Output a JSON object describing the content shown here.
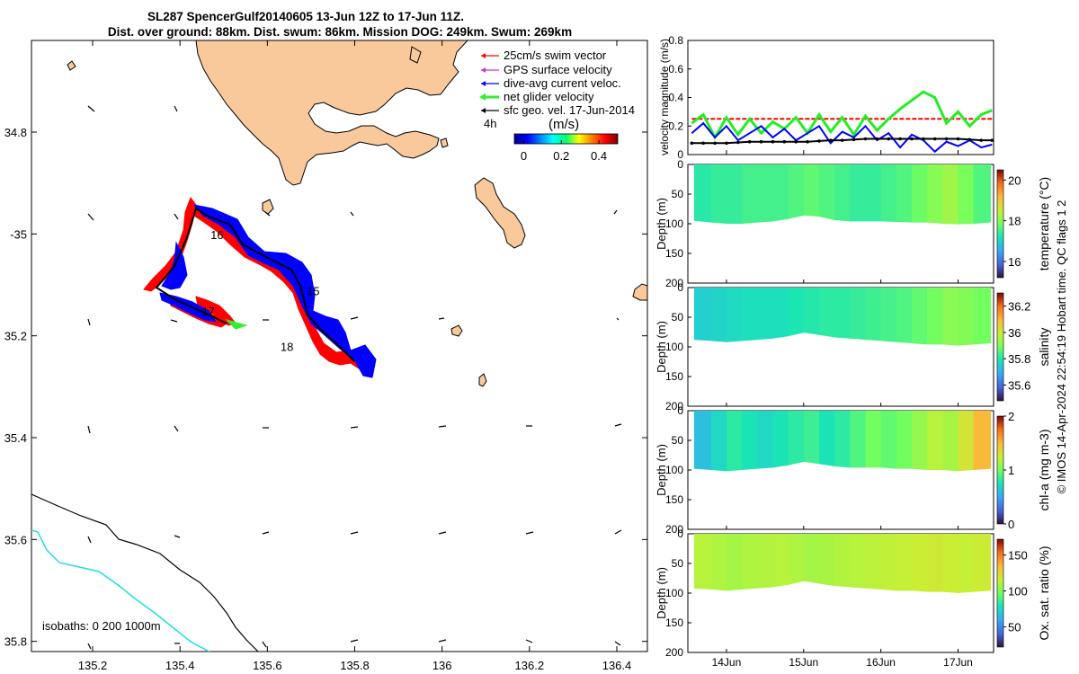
{
  "title": {
    "line1": "SL287 SpencerGulf20140605 13-Jun 12Z to 17-Jun 11Z.",
    "line2": "Dist. over ground: 88km. Dist. swum: 86km. Mission DOG: 249km. Swum: 269km"
  },
  "map": {
    "lon_ticks": [
      "135.2",
      "135.4",
      "135.6",
      "135.8",
      "136",
      "136.2",
      "136.4"
    ],
    "lon_values": [
      135.2,
      135.4,
      135.6,
      135.8,
      136.0,
      136.2,
      136.4
    ],
    "lat_ticks": [
      "34.8",
      "-35",
      "35.2",
      "35.4",
      "35.6",
      "35.8"
    ],
    "lat_values": [
      -34.8,
      -35.0,
      -35.2,
      -35.4,
      -35.6,
      -35.8
    ],
    "xlim": [
      135.06,
      136.47
    ],
    "ylim": [
      -35.82,
      -34.62
    ],
    "legend": [
      {
        "label": "25cm/s swim vector",
        "color": "#ff0000"
      },
      {
        "label": "GPS surface velocity",
        "color": "#cc33cc"
      },
      {
        "label": "dive-avg current veloc.",
        "color": "#0000ff"
      },
      {
        "label": "net glider velocity",
        "color": "#00dd00"
      },
      {
        "label": "sfc geo. vel. 17-Jun-2014",
        "color": "#000000"
      }
    ],
    "colorbar": {
      "unit_label": "(m/s)",
      "corner_label": "4h",
      "ticks": [
        "0",
        "0.2",
        "0.4"
      ],
      "tick_values": [
        0,
        0.2,
        0.4
      ],
      "range": [
        -0.05,
        0.5
      ]
    },
    "day_labels": [
      {
        "text": "16",
        "lon": 135.47,
        "lat": -35.01
      },
      {
        "text": "15",
        "lon": 135.69,
        "lat": -35.12
      },
      {
        "text": "17",
        "lon": 135.45,
        "lat": -35.16
      },
      {
        "text": "18",
        "lon": 135.63,
        "lat": -35.23
      }
    ],
    "track": [
      [
        135.51,
        -35.21
      ],
      [
        135.46,
        -35.19
      ],
      [
        135.38,
        -35.16
      ],
      [
        135.34,
        -35.145
      ],
      [
        135.38,
        -35.09
      ],
      [
        135.43,
        -34.99
      ],
      [
        135.48,
        -35.01
      ],
      [
        135.53,
        -35.06
      ],
      [
        135.57,
        -35.08
      ],
      [
        135.64,
        -35.12
      ],
      [
        135.66,
        -35.17
      ],
      [
        135.7,
        -35.21
      ],
      [
        135.77,
        -35.25
      ],
      [
        135.82,
        -35.27
      ]
    ],
    "isobath_label": "isobaths: 0   200  1000m"
  },
  "velocity_panel": {
    "ylabel": "velocity magnitude (m/s)",
    "yticks": [
      "0",
      "0.2",
      "0.4",
      "0.6",
      "0.8"
    ],
    "ytick_values": [
      0,
      0.2,
      0.4,
      0.6,
      0.8
    ],
    "ylim": [
      0,
      0.8
    ]
  },
  "depth_panels": [
    {
      "variable": "temperature (°C)",
      "ylabel": "Depth (m)",
      "yticks": [
        "0",
        "50",
        "100",
        "150",
        "200"
      ],
      "cbar_ticks": [
        "16",
        "18",
        "20"
      ],
      "cbar_range": [
        15.2,
        20.5
      ],
      "cbar_tick_values": [
        16,
        18,
        20
      ]
    },
    {
      "variable": "salinity",
      "ylabel": "Depth (m)",
      "yticks": [
        "0",
        "50",
        "100",
        "150",
        "200"
      ],
      "cbar_ticks": [
        "35.6",
        "35.8",
        "36",
        "36.2"
      ],
      "cbar_range": [
        35.48,
        36.3
      ],
      "cbar_tick_values": [
        35.6,
        35.8,
        36.0,
        36.2
      ]
    },
    {
      "variable": "chl-a (mg m-3)",
      "ylabel": "Depth (m)",
      "yticks": [
        "0",
        "50",
        "100",
        "150",
        "200"
      ],
      "cbar_ticks": [
        "0",
        "1",
        "2"
      ],
      "cbar_range": [
        0,
        2
      ],
      "cbar_tick_values": [
        0,
        1,
        2
      ]
    },
    {
      "variable": "Ox. sat. ratio (%)",
      "ylabel": "Depth (m)",
      "yticks": [
        "0",
        "50",
        "100",
        "150",
        "200"
      ],
      "cbar_ticks": [
        "50",
        "100",
        "150"
      ],
      "cbar_range": [
        22,
        172
      ],
      "cbar_tick_values": [
        50,
        100,
        150
      ]
    }
  ],
  "time_axis": {
    "ticks": [
      "14Jun",
      "15Jun",
      "16Jun",
      "17Jun"
    ],
    "tick_values": [
      14,
      15,
      16,
      17
    ],
    "xlim": [
      13.5,
      17.46
    ]
  },
  "footer": "© IMOS 14-Apr-2024 22:54:19 Hobart time. QC flags 1  2",
  "colors": {
    "land": "#f9c99c",
    "isobath_200": "#000000",
    "isobath_1000": "#22dde0",
    "track": "#000000",
    "swim": "#ff0000",
    "current": "#0000ff",
    "net": "#33ee33"
  },
  "chart_data": [
    {
      "type": "line",
      "title": "velocity magnitude",
      "ylabel": "velocity magnitude (m/s)",
      "x": [
        13.55,
        13.7,
        13.85,
        14.0,
        14.15,
        14.3,
        14.45,
        14.6,
        14.75,
        14.9,
        15.05,
        15.2,
        15.35,
        15.5,
        15.65,
        15.8,
        15.95,
        16.1,
        16.25,
        16.4,
        16.55,
        16.7,
        16.85,
        17.0,
        17.15,
        17.3,
        17.44
      ],
      "series": [
        {
          "name": "25cm/s swim vector",
          "color": "#ff0000",
          "values": [
            0.25,
            0.25,
            0.25,
            0.25,
            0.25,
            0.25,
            0.25,
            0.25,
            0.25,
            0.25,
            0.25,
            0.25,
            0.25,
            0.25,
            0.25,
            0.25,
            0.25,
            0.25,
            0.25,
            0.25,
            0.25,
            0.25,
            0.25,
            0.25,
            0.25,
            0.25,
            0.25
          ]
        },
        {
          "name": "net glider velocity",
          "color": "#22ee22",
          "values": [
            0.22,
            0.28,
            0.12,
            0.26,
            0.14,
            0.25,
            0.15,
            0.23,
            0.18,
            0.26,
            0.15,
            0.28,
            0.16,
            0.26,
            0.14,
            0.27,
            0.17,
            0.25,
            0.32,
            0.38,
            0.44,
            0.4,
            0.22,
            0.3,
            0.2,
            0.28,
            0.31
          ]
        },
        {
          "name": "dive-avg current veloc.",
          "color": "#0000ff",
          "values": [
            0.15,
            0.22,
            0.12,
            0.2,
            0.1,
            0.15,
            0.2,
            0.12,
            0.18,
            0.1,
            0.15,
            0.2,
            0.08,
            0.16,
            0.12,
            0.2,
            0.1,
            0.15,
            0.05,
            0.14,
            0.1,
            0.02,
            0.09,
            0.06,
            0.1,
            0.05,
            0.07
          ]
        },
        {
          "name": "sfc geo. vel.",
          "color": "#000000",
          "values": [
            0.08,
            0.08,
            0.08,
            0.08,
            0.085,
            0.09,
            0.09,
            0.09,
            0.09,
            0.09,
            0.09,
            0.095,
            0.1,
            0.1,
            0.105,
            0.11,
            0.11,
            0.11,
            0.11,
            0.11,
            0.11,
            0.11,
            0.11,
            0.11,
            0.105,
            0.1,
            0.1
          ]
        }
      ],
      "ylim": [
        0,
        0.8
      ]
    },
    {
      "type": "heatmap",
      "title": "temperature section",
      "ylabel": "Depth (m)",
      "x": [
        13.58,
        13.8,
        14.0,
        14.2,
        14.4,
        14.6,
        14.8,
        15.0,
        15.2,
        15.4,
        15.6,
        15.8,
        16.0,
        16.2,
        16.4,
        16.6,
        16.8,
        17.0,
        17.2,
        17.42
      ],
      "bottom_depth": [
        95,
        98,
        100,
        100,
        98,
        96,
        92,
        86,
        88,
        94,
        96,
        96,
        96,
        97,
        98,
        98,
        100,
        101,
        100,
        98
      ],
      "values": [
        17.3,
        17.4,
        17.4,
        17.5,
        17.5,
        17.5,
        17.6,
        17.7,
        17.6,
        17.5,
        17.4,
        17.4,
        17.5,
        17.6,
        17.8,
        18.0,
        18.2,
        17.9,
        17.6,
        17.5
      ],
      "ylim": [
        200,
        0
      ]
    },
    {
      "type": "heatmap",
      "title": "salinity section",
      "ylabel": "Depth (m)",
      "x": [
        13.58,
        13.8,
        14.0,
        14.2,
        14.4,
        14.6,
        14.8,
        15.0,
        15.2,
        15.4,
        15.6,
        15.8,
        16.0,
        16.2,
        16.4,
        16.6,
        16.8,
        17.0,
        17.2,
        17.42
      ],
      "bottom_depth": [
        88,
        90,
        92,
        90,
        88,
        86,
        82,
        76,
        80,
        84,
        86,
        88,
        90,
        92,
        94,
        96,
        96,
        98,
        96,
        94
      ],
      "values": [
        35.75,
        35.76,
        35.77,
        35.78,
        35.78,
        35.78,
        35.79,
        35.8,
        35.81,
        35.81,
        35.82,
        35.83,
        35.84,
        35.85,
        35.87,
        35.89,
        35.92,
        35.91,
        35.89,
        35.9
      ],
      "ylim": [
        200,
        0
      ]
    },
    {
      "type": "heatmap",
      "title": "chl-a section",
      "ylabel": "Depth (m)",
      "x": [
        13.58,
        13.8,
        14.0,
        14.2,
        14.4,
        14.6,
        14.8,
        15.0,
        15.2,
        15.4,
        15.6,
        15.8,
        16.0,
        16.2,
        16.4,
        16.6,
        16.8,
        17.0,
        17.2,
        17.42
      ],
      "bottom_depth": [
        98,
        100,
        102,
        100,
        98,
        96,
        92,
        86,
        90,
        94,
        96,
        96,
        96,
        98,
        98,
        100,
        100,
        102,
        100,
        98
      ],
      "values": [
        0.6,
        0.7,
        0.8,
        0.75,
        0.7,
        0.75,
        0.8,
        0.85,
        0.75,
        0.8,
        0.9,
        1.0,
        0.95,
        1.0,
        1.1,
        1.2,
        1.15,
        1.3,
        1.5,
        1.7
      ],
      "ylim": [
        200,
        0
      ]
    },
    {
      "type": "heatmap",
      "title": "oxygen saturation section",
      "ylabel": "Depth (m)",
      "x": [
        13.58,
        13.8,
        14.0,
        14.2,
        14.4,
        14.6,
        14.8,
        15.0,
        15.2,
        15.4,
        15.6,
        15.8,
        16.0,
        16.2,
        16.4,
        16.6,
        16.8,
        17.0,
        17.2,
        17.42
      ],
      "bottom_depth": [
        92,
        94,
        96,
        94,
        92,
        90,
        86,
        80,
        84,
        88,
        90,
        92,
        94,
        96,
        96,
        98,
        98,
        100,
        98,
        96
      ],
      "values": [
        112,
        110,
        108,
        110,
        111,
        112,
        110,
        108,
        109,
        111,
        112,
        113,
        114,
        115,
        116,
        118,
        116,
        115,
        117,
        118
      ],
      "ylim": [
        200,
        0
      ]
    }
  ]
}
